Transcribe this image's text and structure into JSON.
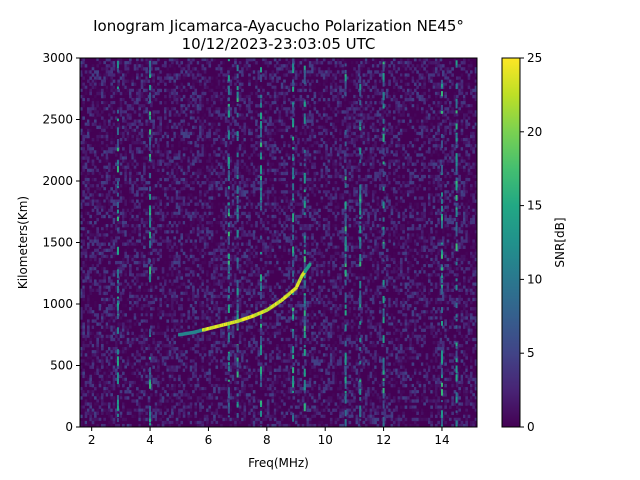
{
  "chart_data": {
    "type": "heatmap",
    "title": "Ionogram Jicamarca-Ayacucho Polarization NE45°",
    "subtitle": "10/12/2023-23:03:05 UTC",
    "xlabel": "Freq(MHz)",
    "ylabel": "Kilometers(Km)",
    "xlim": [
      1.6,
      15.2
    ],
    "ylim": [
      0,
      3000
    ],
    "xticks": [
      2,
      4,
      6,
      8,
      10,
      12,
      14
    ],
    "yticks": [
      0,
      500,
      1000,
      1500,
      2000,
      2500,
      3000
    ],
    "colorbar": {
      "label": "SNR[dB]",
      "range": [
        0,
        25
      ],
      "ticks": [
        0,
        5,
        10,
        15,
        20,
        25
      ],
      "colormap": "viridis"
    },
    "trace": {
      "name": "",
      "x": [
        5.0,
        5.5,
        6.0,
        6.5,
        7.0,
        7.5,
        8.0,
        8.5,
        9.0,
        9.2,
        9.5
      ],
      "y": [
        750,
        770,
        800,
        830,
        860,
        900,
        950,
        1030,
        1130,
        1230,
        1330
      ]
    },
    "background_noise_dB": [
      0,
      5
    ],
    "strong_columns_MHz": [
      2.9,
      4.0,
      6.7,
      7.0,
      7.8,
      8.9,
      9.3,
      10.7,
      11.2,
      12.0,
      14.0,
      14.5
    ]
  }
}
